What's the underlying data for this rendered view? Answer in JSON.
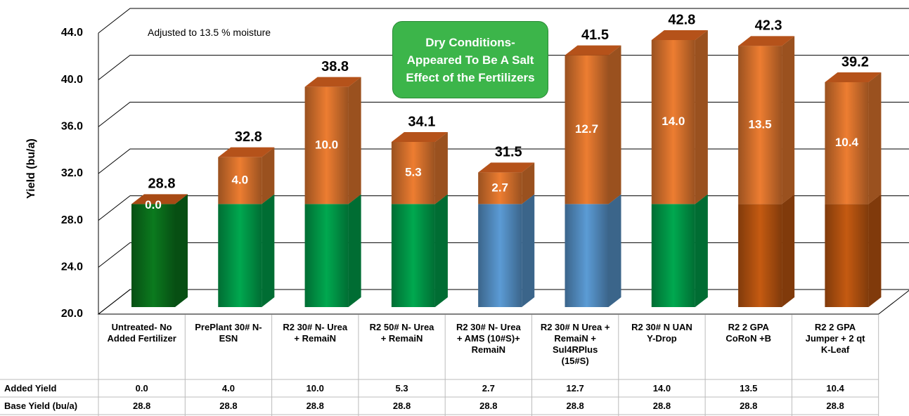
{
  "chart_data": {
    "type": "stacked_bar_3d",
    "y_label": "Yield (bu/a)",
    "annotations": [
      "Adjusted to 13.5 % moisture",
      "Dry Conditions- Appeared To Be A Salt Effect of the Fertilizers"
    ],
    "categories": [
      "Untreated- No Added Fertilizer",
      "PrePlant 30# N- ESN",
      "R2 30# N- Urea + RemaiN",
      "R2 50# N- Urea + RemaiN",
      "R2 30# N- Urea + AMS (10#S)+ RemaiN",
      "R2 30# N Urea + RemaiN + Sul4RPlus (15#S)",
      "R2 30# N UAN Y-Drop",
      "R2 2 GPA CoRoN +B",
      "R2 2 GPA Jumper + 2 qt K-Leaf"
    ],
    "series": [
      {
        "name": "Base Yield (bu/a)",
        "colors": [
          "#0b7a1e",
          "#00a84f",
          "#00a84f",
          "#00a84f",
          "#5b9bd5",
          "#5b9bd5",
          "#00a84f",
          "#c55a11",
          "#c55a11"
        ],
        "values": [
          28.8,
          28.8,
          28.8,
          28.8,
          28.8,
          28.8,
          28.8,
          28.8,
          28.8
        ]
      },
      {
        "name": "Added Yield",
        "color": "#ed7d31",
        "values": [
          0,
          4,
          10,
          5.3,
          2.7,
          12.7,
          14,
          13.5,
          10.4
        ],
        "value_labels": [
          "0.0",
          "4.0",
          "10.0",
          "5.3",
          "2.7",
          "12.7",
          "14.0",
          "13.5",
          "10.4"
        ]
      }
    ],
    "totals": [
      28.8,
      32.8,
      38.8,
      34.1,
      31.5,
      41.5,
      42.8,
      42.3,
      39.2
    ],
    "ylim": [
      20,
      44
    ],
    "yticks": [
      {
        "value": 20,
        "label": "20.0"
      },
      {
        "value": 24,
        "label": "24.0"
      },
      {
        "value": 28,
        "label": "28.0"
      },
      {
        "value": 32,
        "label": "32.0"
      },
      {
        "value": 36,
        "label": "36.0"
      },
      {
        "value": 40,
        "label": "40.0"
      },
      {
        "value": 44,
        "label": "44.0"
      }
    ],
    "grid": true
  }
}
